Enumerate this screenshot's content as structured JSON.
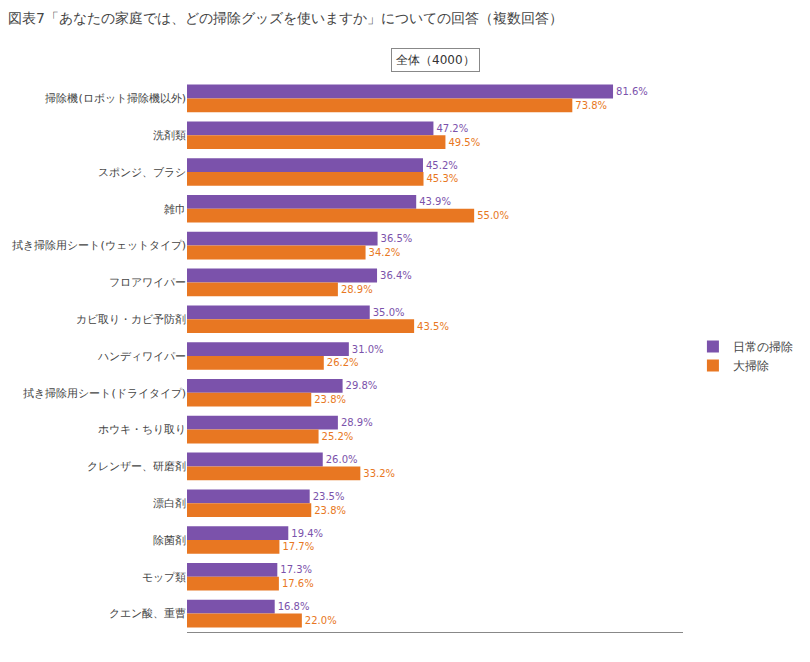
{
  "chart_data": {
    "type": "bar",
    "orientation": "horizontal",
    "title": "図表7「あなたの家庭では、どの掃除グッズを使いますか」についての回答（複数回答）",
    "annotations": [
      "全体（4000）"
    ],
    "categories": [
      "掃除機(ロボット掃除機以外)",
      "洗剤類",
      "スポンジ、ブラシ",
      "雑巾",
      "拭き掃除用シート(ウェットタイプ)",
      "フロアワイパー",
      "カビ取り・カビ予防剤",
      "ハンディワイパー",
      "拭き掃除用シート(ドライタイプ)",
      "ホウキ・ちり取り",
      "クレンザー、研磨剤",
      "漂白剤",
      "除菌剤",
      "モップ類",
      "クエン酸、重曹"
    ],
    "series": [
      {
        "name": "日常の掃除",
        "color": "#7B52AB",
        "values": [
          81.6,
          47.2,
          45.2,
          43.9,
          36.5,
          36.4,
          35.0,
          31.0,
          29.8,
          28.9,
          26.0,
          23.5,
          19.4,
          17.3,
          16.8
        ],
        "value_labels": [
          "81.6%",
          "47.2%",
          "45.2%",
          "43.9%",
          "36.5%",
          "36.4%",
          "35.0%",
          "31.0%",
          "29.8%",
          "28.9%",
          "26.0%",
          "23.5%",
          "19.4%",
          "17.3%",
          "16.8%"
        ]
      },
      {
        "name": "大掃除",
        "color": "#E87722",
        "values": [
          73.8,
          49.5,
          45.3,
          55.0,
          34.2,
          28.9,
          43.5,
          26.2,
          23.8,
          25.2,
          33.2,
          23.8,
          17.7,
          17.6,
          22.0
        ],
        "value_labels": [
          "73.8%",
          "49.5%",
          "45.3%",
          "55.0%",
          "34.2%",
          "28.9%",
          "43.5%",
          "26.2%",
          "23.8%",
          "25.2%",
          "33.2%",
          "23.8%",
          "17.7%",
          "17.6%",
          "22.0%"
        ]
      }
    ],
    "xlim": [
      0,
      95
    ],
    "grid": false,
    "legend": "right",
    "data_labels": true,
    "tick_labels": "y"
  }
}
